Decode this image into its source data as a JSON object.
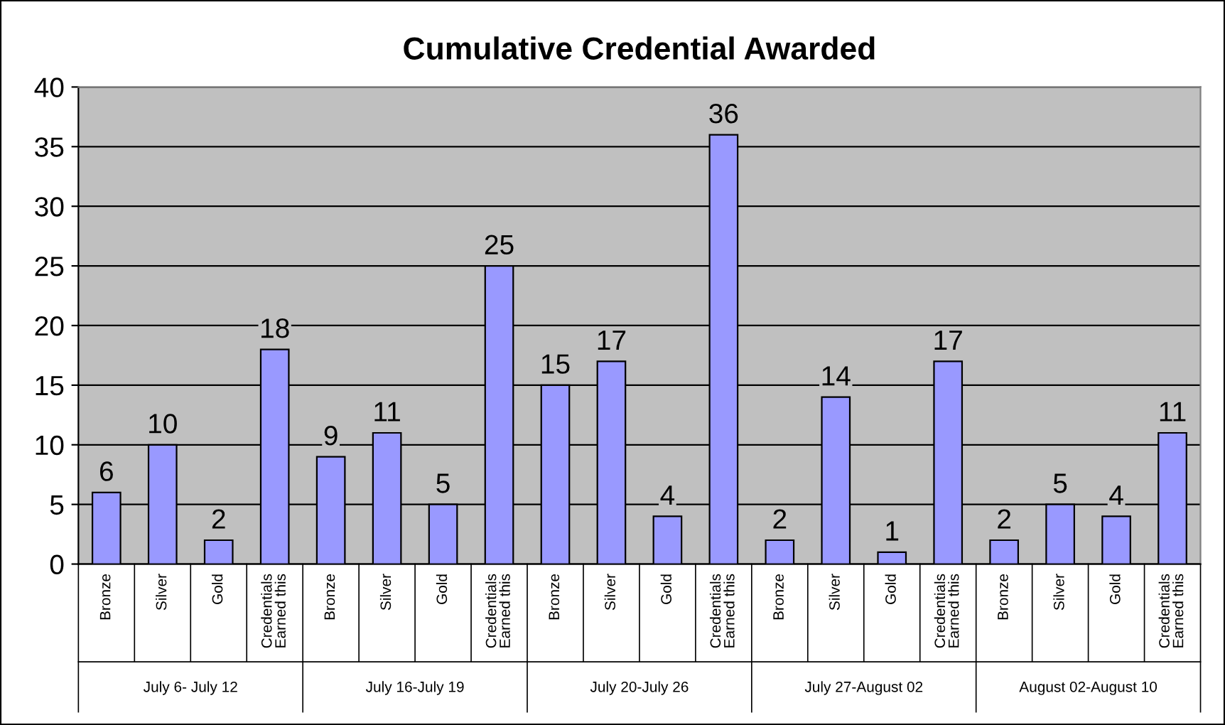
{
  "chart_data": {
    "type": "bar",
    "title": "Cumulative Credential Awarded",
    "categories": [
      "Bronze",
      "Silver",
      "Gold",
      "Credentials\nEarned this",
      "Bronze",
      "Silver",
      "Gold",
      "Credentials\nEarned this",
      "Bronze",
      "Silver",
      "Gold",
      "Credentials\nEarned this",
      "Bronze",
      "Silver",
      "Gold",
      "Credentials\nEarned this",
      "Bronze",
      "Silver",
      "Gold",
      "Credentials\nEarned this"
    ],
    "values": [
      6,
      10,
      2,
      18,
      9,
      11,
      5,
      25,
      15,
      17,
      4,
      36,
      2,
      14,
      1,
      17,
      2,
      5,
      4,
      11
    ],
    "color": "#9999ff",
    "data_labels": true,
    "ylim": [
      0,
      40
    ],
    "yticks": [
      0,
      5,
      10,
      15,
      20,
      25,
      30,
      35,
      40
    ],
    "grid": "y",
    "annotations": [
      "July 6- July 12",
      "July 16-July 19",
      "July 20-July 26",
      "July 27-August 02",
      "August 02-August 10"
    ]
  }
}
